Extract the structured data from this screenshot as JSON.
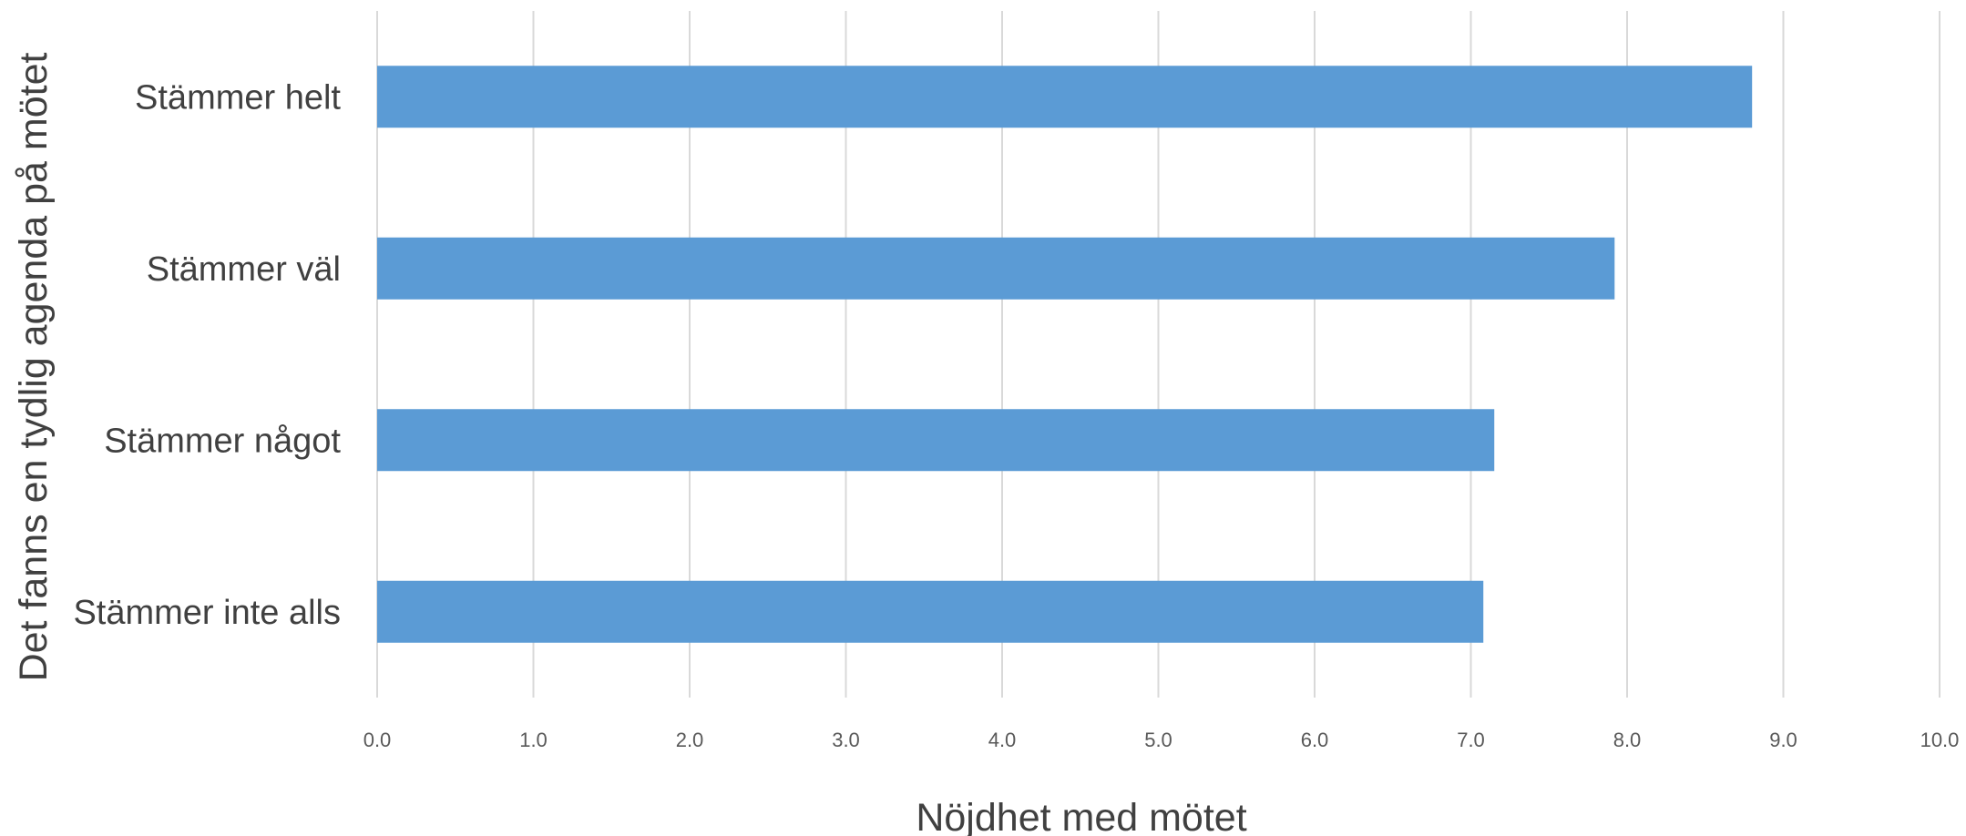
{
  "chart_data": {
    "type": "bar",
    "orientation": "horizontal",
    "categories": [
      "Stämmer helt",
      "Stämmer väl",
      "Stämmer något",
      "Stämmer inte alls"
    ],
    "values": [
      8.8,
      7.92,
      7.15,
      7.08
    ],
    "title": "",
    "xlabel": "Nöjdhet med mötet",
    "ylabel": "Det fanns en tydlig agenda på mötet",
    "xlim": [
      0,
      10
    ],
    "xticks": [
      "0.0",
      "1.0",
      "2.0",
      "3.0",
      "4.0",
      "5.0",
      "6.0",
      "7.0",
      "8.0",
      "9.0",
      "10.0"
    ],
    "grid": "vertical",
    "legend": "none",
    "colors": {
      "bar": "#5b9bd5"
    }
  }
}
